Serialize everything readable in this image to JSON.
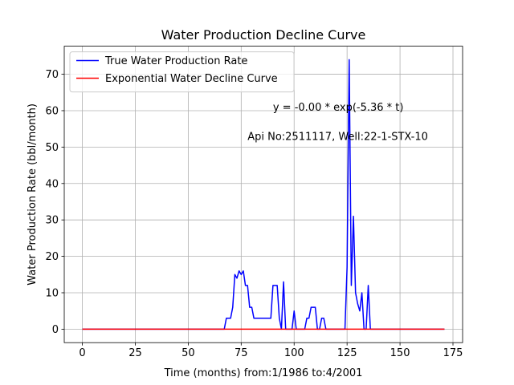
{
  "chart_data": {
    "type": "line",
    "title": "Water Production Decline Curve",
    "xlabel": "Time (months) from:1/1986 to:4/2001",
    "ylabel": "Water Production Rate (bbl/month)",
    "xlim": [
      -8.55,
      179.55
    ],
    "ylim": [
      -3.7,
      77.7
    ],
    "xticks": [
      0,
      25,
      50,
      75,
      100,
      125,
      150,
      175
    ],
    "yticks": [
      0,
      10,
      20,
      30,
      40,
      50,
      60,
      70
    ],
    "grid": true,
    "legend_position": "upper-left",
    "annotations": [
      {
        "text": "y = -0.00 * exp(-5.36 * t)",
        "x": 90,
        "y": 60
      },
      {
        "text": "Api No:2511117, Well:22-1-STX-10",
        "x": 78,
        "y": 52
      }
    ],
    "series": [
      {
        "name": "True Water Production Rate",
        "color": "#0000ff",
        "x": [
          0,
          67,
          68,
          70,
          71,
          72,
          73,
          74,
          75,
          76,
          77,
          78,
          79,
          80,
          81,
          82,
          85,
          88,
          89,
          90,
          91,
          92,
          93,
          94,
          95,
          96,
          97,
          98,
          99,
          100,
          101,
          102,
          103,
          104,
          105,
          106,
          107,
          108,
          109,
          110,
          111,
          112,
          113,
          114,
          115,
          116,
          117,
          118,
          120,
          124,
          125,
          126,
          127,
          128,
          129,
          130,
          131,
          132,
          133,
          134,
          135,
          136,
          137,
          140,
          150,
          160,
          171
        ],
        "y": [
          0,
          0,
          3,
          3,
          6,
          15,
          14,
          16,
          15,
          16,
          12,
          12,
          6,
          6,
          3,
          3,
          3,
          3,
          3,
          12,
          12,
          12,
          3,
          0,
          13,
          0,
          0,
          0,
          0,
          5,
          0,
          0,
          0,
          0,
          0,
          3,
          3,
          6,
          6,
          6,
          0,
          0,
          3,
          3,
          0,
          0,
          0,
          0,
          0,
          0,
          17,
          74,
          12,
          31,
          10,
          7,
          5,
          10,
          0,
          0,
          12,
          0,
          0,
          0,
          0,
          0,
          0
        ]
      },
      {
        "name": "Exponential Water Decline Curve",
        "color": "#ff0000",
        "x": [
          0,
          171
        ],
        "y": [
          0,
          0
        ]
      }
    ]
  }
}
